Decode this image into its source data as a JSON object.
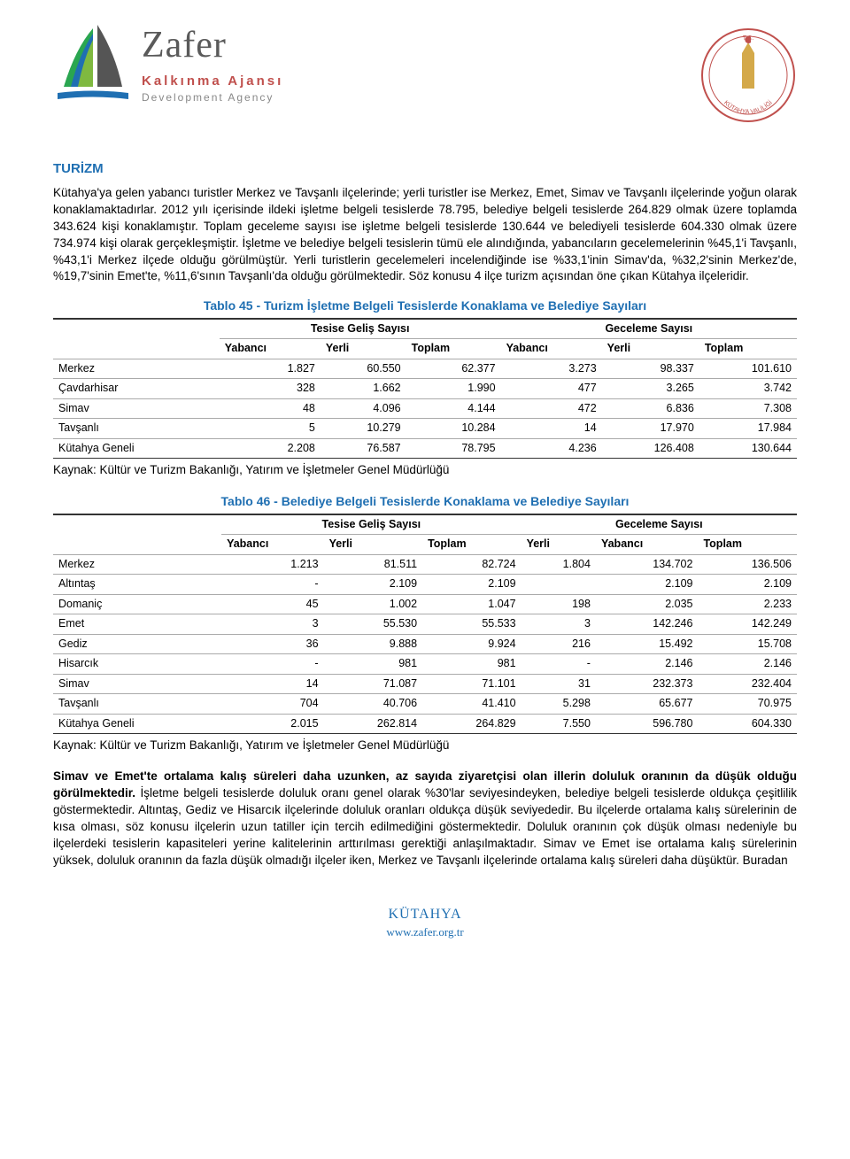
{
  "colors": {
    "heading": "#1f6fb2",
    "logo_red": "#c0504d",
    "logo_grey": "#5a5a5a",
    "text": "#000000"
  },
  "header": {
    "logo_main": "Zafer",
    "logo_sub1": "Kalkınma Ajansı",
    "logo_sub2": "Development Agency",
    "seal_top": "T.C.",
    "seal_text": "KÜTAHYA VALİLİĞİ"
  },
  "section_title": "TURİZM",
  "paragraph1": "Kütahya'ya gelen yabancı turistler Merkez ve Tavşanlı ilçelerinde; yerli turistler ise Merkez, Emet, Simav ve Tavşanlı ilçelerinde yoğun olarak konaklamaktadırlar. 2012 yılı içerisinde ildeki işletme belgeli tesislerde 78.795, belediye belgeli tesislerde 264.829 olmak üzere toplamda 343.624 kişi konaklamıştır. Toplam geceleme sayısı ise işletme belgeli tesislerde 130.644 ve belediyeli tesislerde 604.330 olmak üzere 734.974 kişi olarak gerçekleşmiştir. İşletme ve belediye belgeli tesislerin tümü ele alındığında, yabancıların gecelemelerinin %45,1'i Tavşanlı, %43,1'i Merkez ilçede olduğu görülmüştür. Yerli turistlerin gecelemeleri incelendiğinde ise %33,1'inin Simav'da, %32,2'sinin Merkez'de, %19,7'sinin Emet'te, %11,6'sının Tavşanlı'da olduğu görülmektedir. Söz konusu 4 ilçe turizm açısından öne çıkan Kütahya ilçeleridir.",
  "table45": {
    "title": "Tablo 45 - Turizm İşletme Belgeli Tesislerde Konaklama ve Belediye Sayıları",
    "group_headers": [
      "Tesise Geliş Sayısı",
      "Geceleme Sayısı"
    ],
    "sub_headers": [
      "Yabancı",
      "Yerli",
      "Toplam",
      "Yabancı",
      "Yerli",
      "Toplam"
    ],
    "rows": [
      {
        "label": "Merkez",
        "v": [
          "1.827",
          "60.550",
          "62.377",
          "3.273",
          "98.337",
          "101.610"
        ]
      },
      {
        "label": "Çavdarhisar",
        "v": [
          "328",
          "1.662",
          "1.990",
          "477",
          "3.265",
          "3.742"
        ]
      },
      {
        "label": "Simav",
        "v": [
          "48",
          "4.096",
          "4.144",
          "472",
          "6.836",
          "7.308"
        ]
      },
      {
        "label": "Tavşanlı",
        "v": [
          "5",
          "10.279",
          "10.284",
          "14",
          "17.970",
          "17.984"
        ]
      },
      {
        "label": "Kütahya Geneli",
        "v": [
          "2.208",
          "76.587",
          "78.795",
          "4.236",
          "126.408",
          "130.644"
        ]
      }
    ],
    "source": "Kaynak: Kültür ve Turizm Bakanlığı, Yatırım ve İşletmeler Genel Müdürlüğü"
  },
  "table46": {
    "title": "Tablo 46 - Belediye Belgeli Tesislerde Konaklama ve Belediye Sayıları",
    "group_headers": [
      "Tesise Geliş Sayısı",
      "Geceleme Sayısı"
    ],
    "sub_headers": [
      "Yabancı",
      "Yerli",
      "Toplam",
      "Yerli",
      "Yabancı",
      "Toplam"
    ],
    "rows": [
      {
        "label": "Merkez",
        "v": [
          "1.213",
          "81.511",
          "82.724",
          "1.804",
          "134.702",
          "136.506"
        ]
      },
      {
        "label": "Altıntaş",
        "v": [
          "-",
          "2.109",
          "2.109",
          "",
          "2.109",
          "2.109"
        ]
      },
      {
        "label": "Domaniç",
        "v": [
          "45",
          "1.002",
          "1.047",
          "198",
          "2.035",
          "2.233"
        ]
      },
      {
        "label": "Emet",
        "v": [
          "3",
          "55.530",
          "55.533",
          "3",
          "142.246",
          "142.249"
        ]
      },
      {
        "label": "Gediz",
        "v": [
          "36",
          "9.888",
          "9.924",
          "216",
          "15.492",
          "15.708"
        ]
      },
      {
        "label": "Hisarcık",
        "v": [
          "-",
          "981",
          "981",
          "-",
          "2.146",
          "2.146"
        ]
      },
      {
        "label": "Simav",
        "v": [
          "14",
          "71.087",
          "71.101",
          "31",
          "232.373",
          "232.404"
        ]
      },
      {
        "label": "Tavşanlı",
        "v": [
          "704",
          "40.706",
          "41.410",
          "5.298",
          "65.677",
          "70.975"
        ]
      },
      {
        "label": "Kütahya Geneli",
        "v": [
          "2.015",
          "262.814",
          "264.829",
          "7.550",
          "596.780",
          "604.330"
        ]
      }
    ],
    "source": "Kaynak: Kültür ve Turizm Bakanlığı, Yatırım ve İşletmeler Genel Müdürlüğü"
  },
  "paragraph2_bold": "Simav ve Emet'te ortalama kalış süreleri daha uzunken, az sayıda ziyaretçisi olan illerin doluluk oranının da düşük olduğu görülmektedir.",
  "paragraph2_rest": " İşletme belgeli tesislerde doluluk oranı genel olarak %30'lar seviyesindeyken, belediye belgeli tesislerde oldukça çeşitlilik göstermektedir. Altıntaş, Gediz ve Hisarcık ilçelerinde doluluk oranları oldukça düşük seviyededir. Bu ilçelerde ortalama kalış sürelerinin de kısa olması, söz konusu ilçelerin uzun tatiller için tercih edilmediğini göstermektedir. Doluluk oranının çok düşük olması nedeniyle bu ilçelerdeki tesislerin kapasiteleri yerine kalitelerinin arttırılması gerektiği anlaşılmaktadır. Simav ve Emet ise ortalama kalış sürelerinin yüksek, doluluk oranının da fazla düşük olmadığı ilçeler iken, Merkez ve Tavşanlı ilçelerinde ortalama kalış süreleri daha düşüktür. Buradan",
  "footer": {
    "city": "KÜTAHYA",
    "url": "www.zafer.org.tr"
  }
}
